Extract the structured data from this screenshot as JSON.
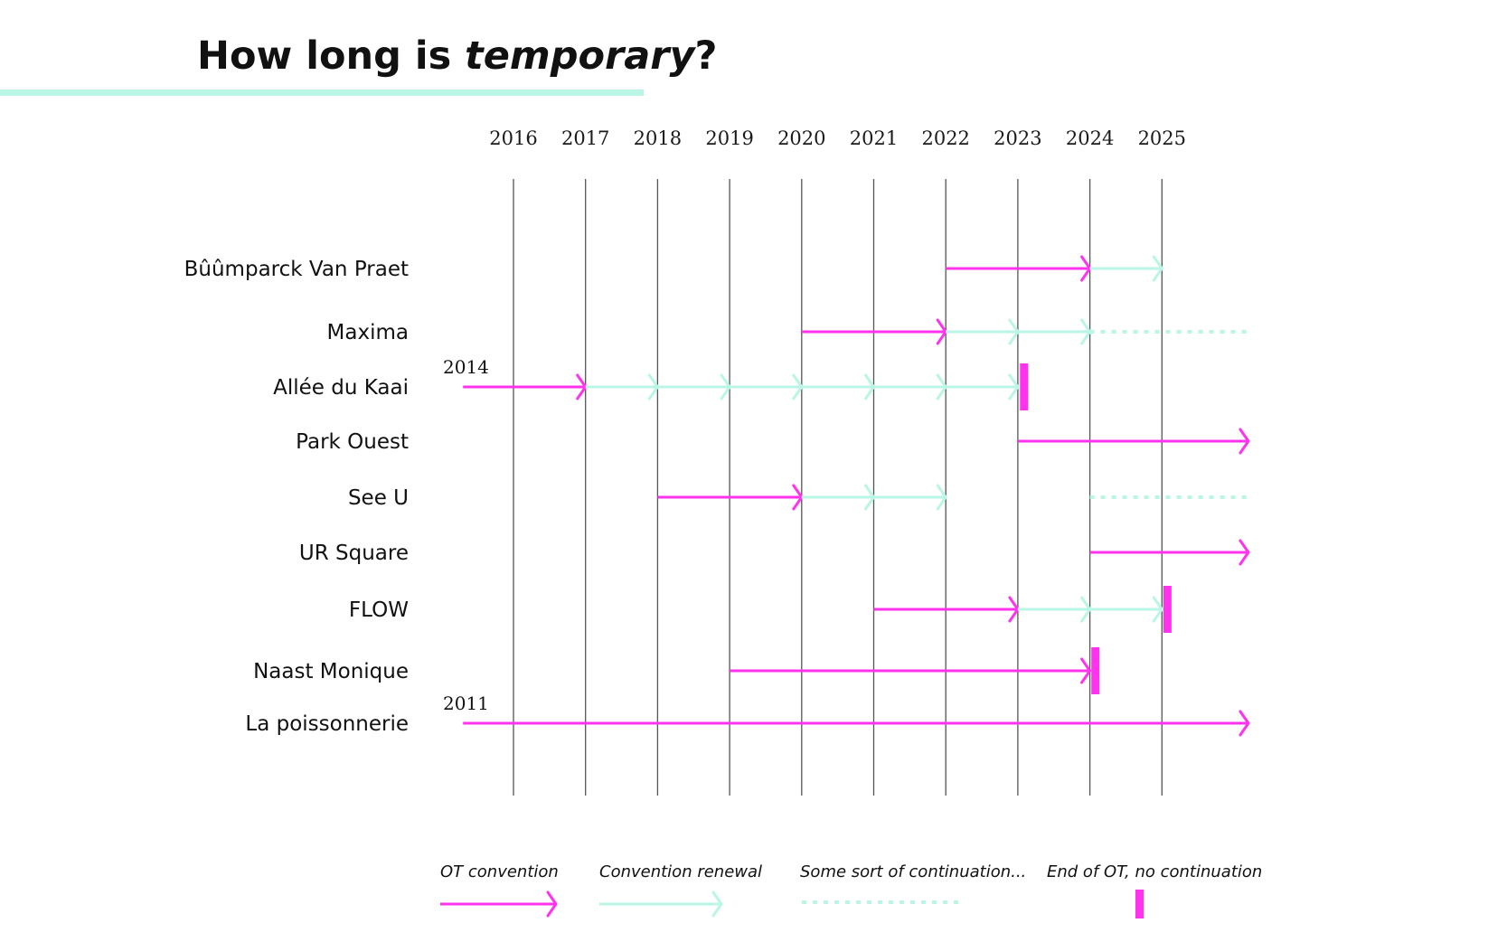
{
  "title": {
    "prefix": "How long is ",
    "emphasis": "temporary",
    "suffix": "?"
  },
  "colors": {
    "convention": "#ff33ee",
    "renewal": "#b9f6e6",
    "continuation": "#b9f6e6",
    "end": "#ff33ee",
    "gridline": "#555555",
    "title_underline": "#b9f6e6"
  },
  "chart_data": {
    "type": "timeline",
    "years": [
      2016,
      2017,
      2018,
      2019,
      2020,
      2021,
      2022,
      2023,
      2024,
      2025
    ],
    "rows": [
      {
        "label": "Bûûmparck Van Praet",
        "start_label": "",
        "segments": [
          {
            "kind": "convention",
            "from": 2022,
            "to": 2024
          },
          {
            "kind": "renewal",
            "from": 2024,
            "to": 2025
          }
        ]
      },
      {
        "label": "Maxima",
        "start_label": "",
        "segments": [
          {
            "kind": "convention",
            "from": 2020,
            "to": 2022
          },
          {
            "kind": "renewal",
            "from": 2022,
            "to": 2023
          },
          {
            "kind": "renewal",
            "from": 2023,
            "to": 2024
          },
          {
            "kind": "continuation",
            "from": 2024,
            "to": 2026.2
          }
        ]
      },
      {
        "label": "Allée du Kaai",
        "start_label": "2014",
        "segments": [
          {
            "kind": "convention",
            "from": 2015.3,
            "to": 2017
          },
          {
            "kind": "renewal",
            "from": 2017,
            "to": 2018
          },
          {
            "kind": "renewal",
            "from": 2018,
            "to": 2019
          },
          {
            "kind": "renewal",
            "from": 2019,
            "to": 2020
          },
          {
            "kind": "renewal",
            "from": 2020,
            "to": 2021
          },
          {
            "kind": "renewal",
            "from": 2021,
            "to": 2022
          },
          {
            "kind": "renewal",
            "from": 2022,
            "to": 2023
          },
          {
            "kind": "end",
            "at": 2023.08
          }
        ]
      },
      {
        "label": "Park Ouest",
        "start_label": "",
        "segments": [
          {
            "kind": "convention",
            "from": 2023,
            "to": 2026.2
          }
        ]
      },
      {
        "label": "See U",
        "start_label": "",
        "segments": [
          {
            "kind": "convention",
            "from": 2018,
            "to": 2020
          },
          {
            "kind": "renewal",
            "from": 2020,
            "to": 2021
          },
          {
            "kind": "renewal",
            "from": 2021,
            "to": 2022
          },
          {
            "kind": "continuation",
            "from": 2024,
            "to": 2026.2
          }
        ]
      },
      {
        "label": "UR Square",
        "start_label": "",
        "segments": [
          {
            "kind": "convention",
            "from": 2024,
            "to": 2026.2
          }
        ]
      },
      {
        "label": "FLOW",
        "start_label": "",
        "segments": [
          {
            "kind": "convention",
            "from": 2021,
            "to": 2023
          },
          {
            "kind": "renewal",
            "from": 2023,
            "to": 2024
          },
          {
            "kind": "renewal",
            "from": 2024,
            "to": 2025
          },
          {
            "kind": "end",
            "at": 2025.07
          }
        ]
      },
      {
        "label": "Naast Monique",
        "start_label": "",
        "segments": [
          {
            "kind": "convention",
            "from": 2019,
            "to": 2024
          },
          {
            "kind": "end",
            "at": 2024.07
          }
        ]
      },
      {
        "label": "La poissonnerie",
        "start_label": "2011",
        "segments": [
          {
            "kind": "convention",
            "from": 2015.3,
            "to": 2026.2
          }
        ]
      }
    ],
    "legend": [
      {
        "kind": "convention",
        "label": "OT convention"
      },
      {
        "kind": "renewal",
        "label": "Convention renewal"
      },
      {
        "kind": "continuation",
        "label": "Some sort of continuation..."
      },
      {
        "kind": "end",
        "label": "End of OT, no continuation"
      }
    ]
  }
}
